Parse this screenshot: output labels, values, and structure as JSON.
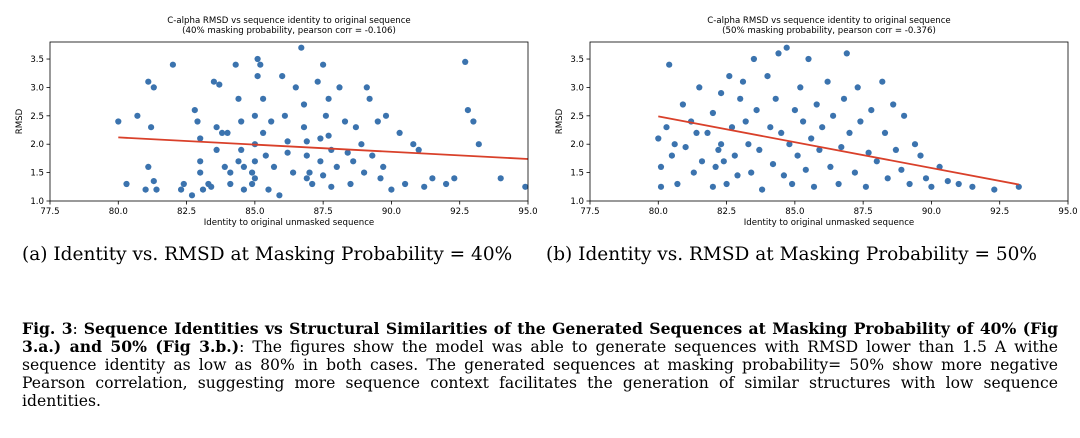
{
  "chart_data": [
    {
      "type": "scatter",
      "title": "C-alpha RMSD vs sequence identity to original sequence",
      "subtitle": "(40% masking probability, pearson corr = -0.106)",
      "xlabel": "Identity to original unmasked sequence",
      "ylabel": "RMSD",
      "xlim": [
        77.5,
        95.0
      ],
      "ylim": [
        1.0,
        3.8
      ],
      "x_ticks": [
        "77.5",
        "80.0",
        "82.5",
        "85.0",
        "87.5",
        "90.0",
        "92.5",
        "95.0"
      ],
      "y_ticks": [
        "1.0",
        "1.5",
        "2.0",
        "2.5",
        "3.0",
        "3.5"
      ],
      "grid": false,
      "colors": {
        "points": "#3b73ae",
        "trend": "#d9402a"
      },
      "trend_line": {
        "x": [
          80.0,
          95.0
        ],
        "y": [
          2.12,
          1.74
        ]
      },
      "points": [
        [
          80.0,
          2.4
        ],
        [
          80.3,
          1.3
        ],
        [
          80.7,
          2.5
        ],
        [
          81.0,
          1.2
        ],
        [
          81.1,
          3.1
        ],
        [
          81.1,
          1.6
        ],
        [
          81.2,
          2.3
        ],
        [
          81.3,
          3.0
        ],
        [
          81.3,
          1.35
        ],
        [
          81.4,
          1.2
        ],
        [
          82.0,
          3.4
        ],
        [
          82.3,
          1.2
        ],
        [
          82.4,
          1.3
        ],
        [
          82.7,
          1.1
        ],
        [
          82.8,
          2.6
        ],
        [
          82.9,
          2.4
        ],
        [
          83.0,
          2.1
        ],
        [
          83.0,
          1.7
        ],
        [
          83.0,
          1.5
        ],
        [
          83.1,
          1.2
        ],
        [
          83.3,
          1.3
        ],
        [
          83.4,
          1.25
        ],
        [
          83.5,
          3.1
        ],
        [
          83.6,
          2.3
        ],
        [
          83.6,
          1.9
        ],
        [
          83.7,
          3.05
        ],
        [
          83.8,
          2.2
        ],
        [
          83.9,
          1.6
        ],
        [
          84.0,
          2.2
        ],
        [
          84.1,
          1.5
        ],
        [
          84.1,
          1.3
        ],
        [
          84.3,
          3.4
        ],
        [
          84.4,
          2.8
        ],
        [
          84.4,
          1.7
        ],
        [
          84.5,
          2.4
        ],
        [
          84.5,
          1.9
        ],
        [
          84.6,
          1.6
        ],
        [
          84.6,
          1.2
        ],
        [
          84.9,
          1.5
        ],
        [
          84.9,
          1.3
        ],
        [
          85.0,
          2.5
        ],
        [
          85.0,
          2.0
        ],
        [
          85.0,
          1.7
        ],
        [
          85.0,
          1.4
        ],
        [
          85.1,
          3.5
        ],
        [
          85.1,
          3.2
        ],
        [
          85.2,
          3.4
        ],
        [
          85.3,
          2.8
        ],
        [
          85.3,
          2.2
        ],
        [
          85.4,
          1.8
        ],
        [
          85.5,
          1.2
        ],
        [
          85.6,
          2.4
        ],
        [
          85.7,
          1.6
        ],
        [
          85.9,
          1.1
        ],
        [
          86.0,
          3.2
        ],
        [
          86.1,
          2.5
        ],
        [
          86.2,
          2.05
        ],
        [
          86.2,
          1.85
        ],
        [
          86.4,
          1.5
        ],
        [
          86.5,
          3.0
        ],
        [
          86.7,
          3.7
        ],
        [
          86.8,
          2.7
        ],
        [
          86.8,
          2.3
        ],
        [
          86.9,
          2.05
        ],
        [
          86.9,
          1.8
        ],
        [
          86.9,
          1.4
        ],
        [
          87.0,
          1.5
        ],
        [
          87.1,
          1.3
        ],
        [
          87.3,
          3.1
        ],
        [
          87.4,
          2.1
        ],
        [
          87.4,
          1.7
        ],
        [
          87.5,
          3.4
        ],
        [
          87.5,
          1.45
        ],
        [
          87.6,
          2.5
        ],
        [
          87.7,
          2.8
        ],
        [
          87.7,
          2.15
        ],
        [
          87.8,
          1.9
        ],
        [
          87.8,
          1.25
        ],
        [
          88.0,
          1.6
        ],
        [
          88.1,
          3.0
        ],
        [
          88.3,
          2.4
        ],
        [
          88.4,
          1.85
        ],
        [
          88.5,
          1.3
        ],
        [
          88.6,
          1.7
        ],
        [
          88.7,
          2.3
        ],
        [
          88.9,
          2.0
        ],
        [
          89.0,
          1.5
        ],
        [
          89.1,
          3.0
        ],
        [
          89.2,
          2.8
        ],
        [
          89.3,
          1.8
        ],
        [
          89.5,
          2.4
        ],
        [
          89.6,
          1.4
        ],
        [
          89.7,
          1.6
        ],
        [
          89.8,
          2.5
        ],
        [
          90.0,
          1.2
        ],
        [
          90.3,
          2.2
        ],
        [
          90.5,
          1.3
        ],
        [
          90.8,
          2.0
        ],
        [
          91.0,
          1.9
        ],
        [
          91.2,
          1.25
        ],
        [
          91.5,
          1.4
        ],
        [
          92.0,
          1.3
        ],
        [
          92.3,
          1.4
        ],
        [
          92.7,
          3.45
        ],
        [
          92.8,
          2.6
        ],
        [
          93.0,
          2.4
        ],
        [
          93.2,
          2.0
        ],
        [
          94.0,
          1.4
        ],
        [
          94.9,
          1.25
        ]
      ]
    },
    {
      "type": "scatter",
      "title": "C-alpha RMSD vs sequence identity to original sequence",
      "subtitle": "(50% masking probability, pearson corr = -0.376)",
      "xlabel": "Identity to original unmasked sequence",
      "ylabel": "RMSD",
      "xlim": [
        77.5,
        95.0
      ],
      "ylim": [
        1.0,
        3.8
      ],
      "x_ticks": [
        "77.5",
        "80.0",
        "82.5",
        "85.0",
        "87.5",
        "90.0",
        "92.5",
        "95.0"
      ],
      "y_ticks": [
        "1.0",
        "1.5",
        "2.0",
        "2.5",
        "3.0",
        "3.5"
      ],
      "grid": false,
      "colors": {
        "points": "#3b73ae",
        "trend": "#d9402a"
      },
      "trend_line": {
        "x": [
          80.0,
          93.2
        ],
        "y": [
          2.49,
          1.29
        ]
      },
      "points": [
        [
          80.0,
          2.1
        ],
        [
          80.1,
          1.6
        ],
        [
          80.1,
          1.25
        ],
        [
          80.3,
          2.3
        ],
        [
          80.4,
          3.4
        ],
        [
          80.5,
          1.8
        ],
        [
          80.6,
          2.0
        ],
        [
          80.7,
          1.3
        ],
        [
          80.9,
          2.7
        ],
        [
          81.0,
          1.95
        ],
        [
          81.2,
          2.4
        ],
        [
          81.3,
          1.5
        ],
        [
          81.4,
          2.2
        ],
        [
          81.5,
          3.0
        ],
        [
          81.6,
          1.7
        ],
        [
          81.8,
          2.2
        ],
        [
          82.0,
          1.25
        ],
        [
          82.0,
          2.55
        ],
        [
          82.1,
          1.6
        ],
        [
          82.2,
          1.9
        ],
        [
          82.3,
          2.9
        ],
        [
          82.3,
          2.0
        ],
        [
          82.4,
          1.7
        ],
        [
          82.5,
          1.3
        ],
        [
          82.6,
          3.2
        ],
        [
          82.7,
          2.3
        ],
        [
          82.8,
          1.8
        ],
        [
          82.9,
          1.45
        ],
        [
          83.0,
          2.8
        ],
        [
          83.1,
          3.1
        ],
        [
          83.2,
          2.4
        ],
        [
          83.3,
          2.0
        ],
        [
          83.4,
          1.5
        ],
        [
          83.5,
          3.5
        ],
        [
          83.6,
          2.6
        ],
        [
          83.7,
          1.9
        ],
        [
          83.8,
          1.2
        ],
        [
          84.0,
          3.2
        ],
        [
          84.1,
          2.3
        ],
        [
          84.2,
          1.65
        ],
        [
          84.3,
          2.8
        ],
        [
          84.4,
          3.6
        ],
        [
          84.5,
          2.2
        ],
        [
          84.6,
          1.45
        ],
        [
          84.7,
          3.7
        ],
        [
          84.8,
          2.0
        ],
        [
          84.9,
          1.3
        ],
        [
          85.0,
          2.6
        ],
        [
          85.1,
          1.8
        ],
        [
          85.2,
          3.0
        ],
        [
          85.3,
          2.4
        ],
        [
          85.4,
          1.55
        ],
        [
          85.5,
          3.5
        ],
        [
          85.6,
          2.1
        ],
        [
          85.7,
          1.25
        ],
        [
          85.8,
          2.7
        ],
        [
          85.9,
          1.9
        ],
        [
          86.0,
          2.3
        ],
        [
          86.2,
          3.1
        ],
        [
          86.3,
          1.6
        ],
        [
          86.4,
          2.5
        ],
        [
          86.6,
          1.3
        ],
        [
          86.7,
          1.95
        ],
        [
          86.8,
          2.8
        ],
        [
          86.9,
          3.6
        ],
        [
          87.0,
          2.2
        ],
        [
          87.2,
          1.5
        ],
        [
          87.3,
          3.0
        ],
        [
          87.4,
          2.4
        ],
        [
          87.6,
          1.25
        ],
        [
          87.7,
          1.85
        ],
        [
          87.8,
          2.6
        ],
        [
          88.0,
          1.7
        ],
        [
          88.2,
          3.1
        ],
        [
          88.3,
          2.2
        ],
        [
          88.4,
          1.4
        ],
        [
          88.6,
          2.7
        ],
        [
          88.7,
          1.9
        ],
        [
          88.9,
          1.55
        ],
        [
          89.0,
          2.5
        ],
        [
          89.2,
          1.3
        ],
        [
          89.4,
          2.0
        ],
        [
          89.6,
          1.8
        ],
        [
          89.8,
          1.4
        ],
        [
          90.0,
          1.25
        ],
        [
          90.3,
          1.6
        ],
        [
          90.6,
          1.35
        ],
        [
          91.0,
          1.3
        ],
        [
          91.5,
          1.25
        ],
        [
          92.3,
          1.2
        ],
        [
          93.2,
          1.25
        ]
      ]
    }
  ],
  "captions": {
    "sub_a": "(a) Identity vs. RMSD at Masking Probability = 40%",
    "sub_b": "(b) Identity vs. RMSD at Masking Probability = 50%",
    "figure_label": "Fig. 3",
    "figure_title": "Sequence Identities vs Structural Similarities of the Generated Sequences at Masking Probability of 40% (Fig 3.a.) and 50% (Fig 3.b.)",
    "figure_body": "The figures show the model was able to generate sequences with RMSD lower than 1.5 A withe sequence identity as low as 80% in both cases. The generated sequences at masking probability= 50% show more negative Pearson correlation, suggesting more sequence context facilitates the generation of similar structures with low sequence identities."
  }
}
